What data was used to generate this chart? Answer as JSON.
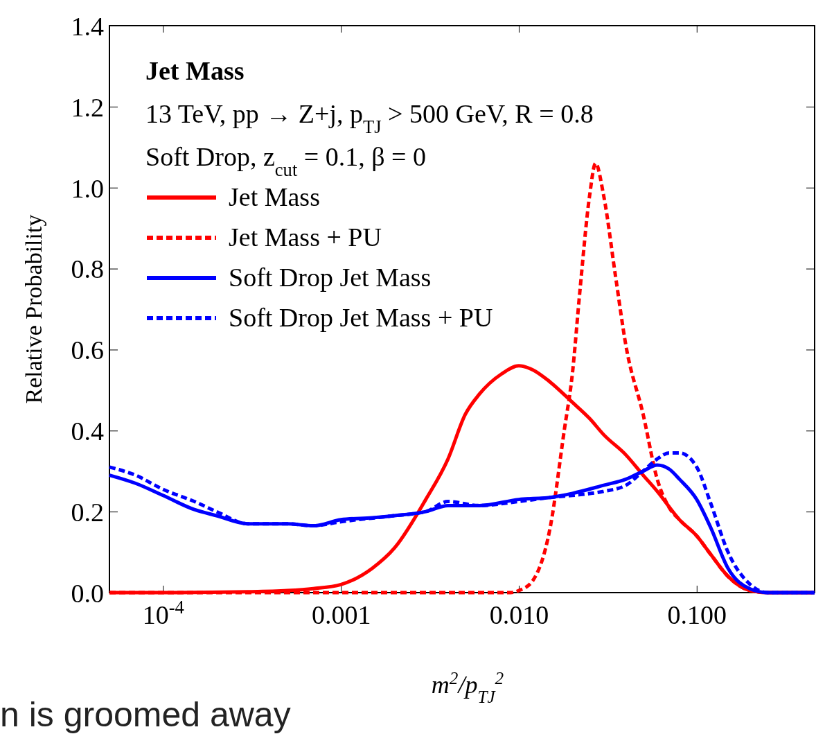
{
  "chart_data": {
    "type": "line",
    "title": "Jet Mass",
    "xlabel": "m$^{2}$/p$_{TJ}$$^{2}$",
    "ylabel": "Relative Probability",
    "annotations": [
      "13 TeV, pp → Z+j, p$_{TJ}$ > 500 GeV, R = 0.8",
      "Soft Drop, z$_{cut}$ = 0.1, β = 0",
      "n is groomed away"
    ],
    "log": "x",
    "xlim": [
      5e-05,
      0.46
    ],
    "ylim": [
      0,
      1.4
    ],
    "xticks": [
      {
        "value": 0.0001,
        "label": "10$^{-4}$"
      },
      {
        "value": 0.001,
        "label": "0.001"
      },
      {
        "value": 0.01,
        "label": "0.010"
      },
      {
        "value": 0.1,
        "label": "0.100"
      }
    ],
    "yticks": [
      {
        "value": 0,
        "label": "0.0"
      },
      {
        "value": 0.2,
        "label": "0.2"
      },
      {
        "value": 0.4,
        "label": "0.4"
      },
      {
        "value": 0.6,
        "label": "0.6"
      },
      {
        "value": 0.8,
        "label": "0.8"
      },
      {
        "value": 1,
        "label": "1.0"
      },
      {
        "value": 1.2,
        "label": "1.2"
      },
      {
        "value": 1.4,
        "label": "1.4"
      }
    ],
    "grid": false,
    "legend": "top left",
    "marker": "none",
    "series": [
      {
        "name": "Jet Mass",
        "color": "#ff0000",
        "line_style": "solid",
        "x": [
          5e-05,
          0.0001,
          0.0003,
          0.0005,
          0.0007,
          0.001,
          0.0015,
          0.002,
          0.003,
          0.004,
          0.005,
          0.006,
          0.008,
          0.01,
          0.012,
          0.015,
          0.02,
          0.025,
          0.03,
          0.04,
          0.05,
          0.06,
          0.08,
          0.1,
          0.12,
          0.15,
          0.2,
          0.25,
          0.46
        ],
        "values": [
          0,
          0,
          0.002,
          0.005,
          0.01,
          0.02,
          0.06,
          0.11,
          0.23,
          0.33,
          0.44,
          0.49,
          0.54,
          0.56,
          0.55,
          0.52,
          0.47,
          0.43,
          0.39,
          0.34,
          0.29,
          0.25,
          0.18,
          0.14,
          0.094,
          0.04,
          0.005,
          0,
          0
        ]
      },
      {
        "name": "Jet Mass + PU",
        "color": "#ff0000",
        "line_style": "dashed",
        "x": [
          5e-05,
          0.001,
          0.005,
          0.009,
          0.01,
          0.012,
          0.015,
          0.018,
          0.02,
          0.022,
          0.025,
          0.027,
          0.03,
          0.035,
          0.04,
          0.05,
          0.06,
          0.07,
          0.08,
          0.1,
          0.12,
          0.15,
          0.2,
          0.25,
          0.46
        ],
        "values": [
          0,
          0,
          0,
          0,
          0.005,
          0.03,
          0.16,
          0.4,
          0.54,
          0.74,
          0.98,
          1.06,
          0.98,
          0.78,
          0.61,
          0.44,
          0.28,
          0.21,
          0.18,
          0.14,
          0.094,
          0.04,
          0.005,
          0,
          0
        ]
      },
      {
        "name": "Soft Drop Jet Mass",
        "color": "#0000ff",
        "line_style": "solid",
        "x": [
          5e-05,
          7e-05,
          0.0001,
          0.00015,
          0.0002,
          0.0003,
          0.0005,
          0.0007,
          0.001,
          0.0015,
          0.002,
          0.003,
          0.004,
          0.006,
          0.01,
          0.015,
          0.02,
          0.03,
          0.04,
          0.05,
          0.06,
          0.07,
          0.08,
          0.1,
          0.12,
          0.15,
          0.2,
          0.25,
          0.46
        ],
        "values": [
          0.29,
          0.27,
          0.24,
          0.205,
          0.19,
          0.17,
          0.17,
          0.165,
          0.18,
          0.185,
          0.19,
          0.2,
          0.215,
          0.215,
          0.23,
          0.235,
          0.245,
          0.265,
          0.28,
          0.3,
          0.315,
          0.305,
          0.28,
          0.23,
          0.16,
          0.06,
          0.009,
          0,
          0
        ]
      },
      {
        "name": "Soft Drop Jet Mass + PU",
        "color": "#0000ff",
        "line_style": "dashed",
        "x": [
          5e-05,
          7e-05,
          0.0001,
          0.00015,
          0.0002,
          0.0003,
          0.0005,
          0.0007,
          0.001,
          0.002,
          0.003,
          0.004,
          0.006,
          0.01,
          0.015,
          0.02,
          0.03,
          0.04,
          0.05,
          0.06,
          0.07,
          0.08,
          0.1,
          0.12,
          0.15,
          0.2,
          0.25,
          0.46
        ],
        "values": [
          0.31,
          0.29,
          0.255,
          0.225,
          0.2,
          0.17,
          0.17,
          0.165,
          0.175,
          0.19,
          0.2,
          0.225,
          0.215,
          0.225,
          0.235,
          0.24,
          0.25,
          0.265,
          0.3,
          0.33,
          0.345,
          0.345,
          0.31,
          0.22,
          0.1,
          0.02,
          0,
          0
        ]
      }
    ]
  }
}
